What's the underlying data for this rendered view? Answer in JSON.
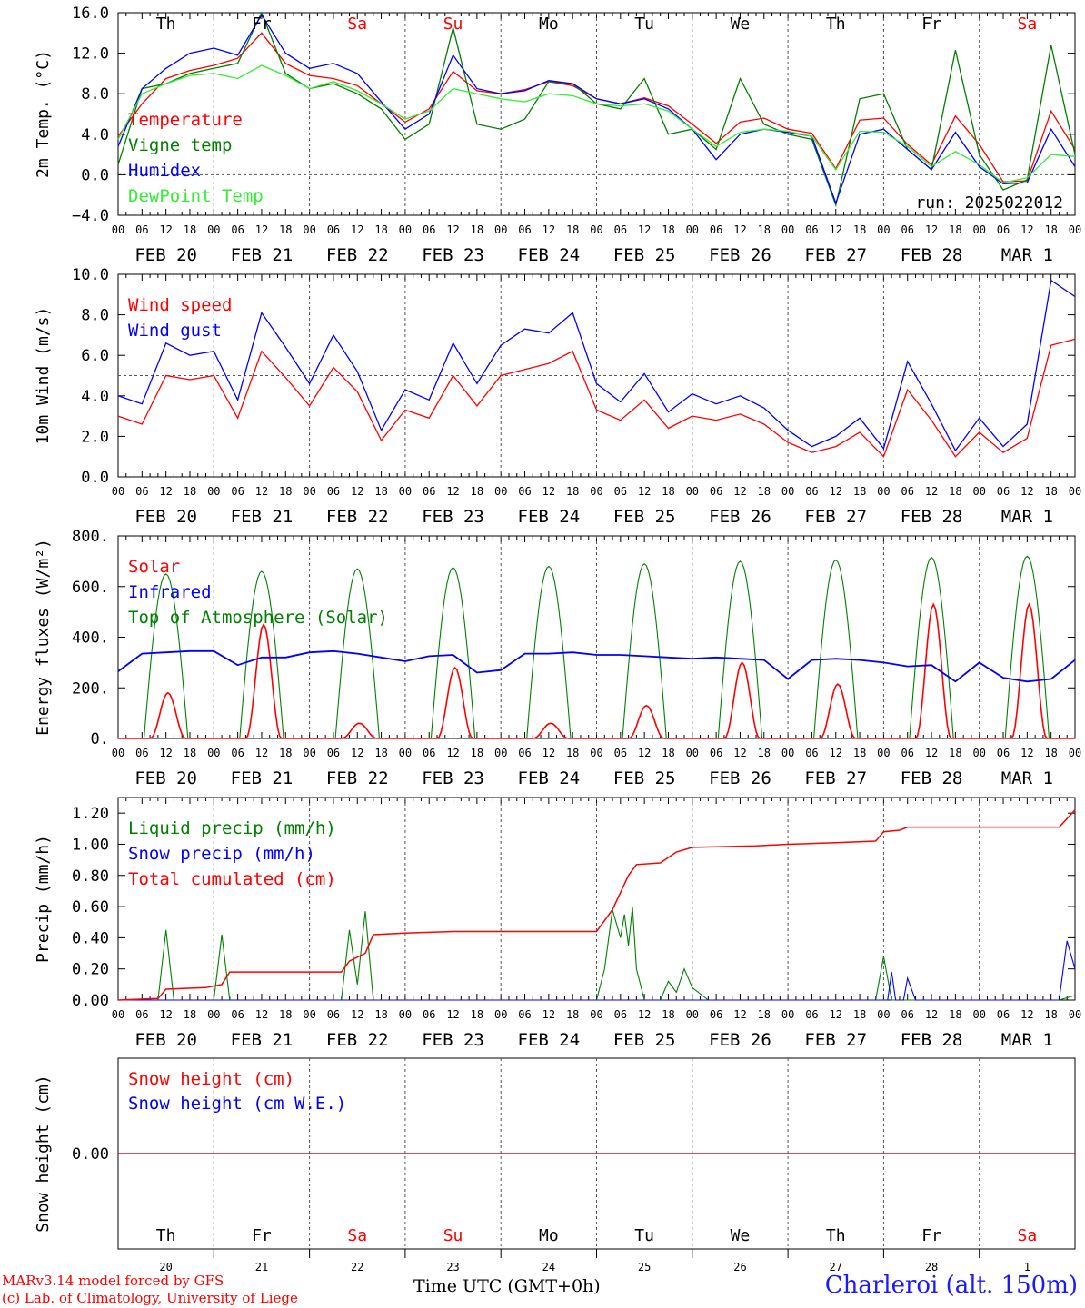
{
  "station_label": "Charleroi (alt. 150m)",
  "credits": [
    "MARv3.14 model forced by GFS",
    "(c) Lab. of Climatology, University of Liege"
  ],
  "time_axis_label": "Time UTC (GMT+0h)",
  "run_label": "run: 2025022012",
  "day_names": [
    "Th",
    "Fr",
    "Sa",
    "Su",
    "Mo",
    "Tu",
    "We",
    "Th",
    "Fr",
    "Sa"
  ],
  "weekend_flags": [
    false,
    false,
    true,
    true,
    false,
    false,
    false,
    false,
    false,
    true
  ],
  "date_labels": [
    "FEB 20",
    "FEB 21",
    "FEB 22",
    "FEB 23",
    "FEB 24",
    "FEB 25",
    "FEB 26",
    "FEB 27",
    "FEB 28",
    "MAR  1"
  ],
  "day_numbers": [
    "20",
    "21",
    "22",
    "23",
    "24",
    "25",
    "26",
    "27",
    "28",
    "1"
  ],
  "hour_labels": [
    "00",
    "06",
    "12",
    "18"
  ],
  "colors": {
    "red": "#ff0000",
    "green": "#008000",
    "blue": "#0000ff",
    "light_green": "#33ee33",
    "grid": "#555555"
  },
  "chart_data": [
    {
      "type": "line",
      "ylabel": "2m Temp. (°C)",
      "ylim": [
        -4,
        16
      ],
      "y_ticks": [
        "−4.0",
        "0.0",
        "4.0",
        "8.0",
        "12.0",
        "16.0"
      ],
      "y_tick_values": [
        -4,
        0,
        4,
        8,
        12,
        16
      ],
      "ref_line": 0,
      "x_hours": [
        0,
        6,
        12,
        18,
        24,
        30,
        36,
        42,
        48,
        54,
        60,
        66,
        72,
        78,
        84,
        90,
        96,
        102,
        108,
        114,
        120,
        126,
        132,
        138,
        144,
        150,
        156,
        162,
        168,
        174,
        180,
        186,
        192,
        198,
        204,
        210,
        216,
        222,
        228,
        234,
        240
      ],
      "series": [
        {
          "name": "Temperature",
          "color": "#ff0000",
          "values": [
            3.8,
            7.0,
            9.5,
            10.3,
            10.8,
            11.5,
            14.0,
            11.0,
            9.8,
            9.5,
            8.8,
            7.0,
            5.2,
            6.5,
            10.2,
            8.3,
            8.0,
            8.4,
            9.2,
            8.8,
            7.5,
            7.0,
            7.6,
            6.8,
            5.0,
            3.1,
            5.2,
            5.6,
            4.5,
            4.1,
            0.6,
            5.4,
            5.6,
            3.0,
            1.0,
            5.8,
            3.0,
            -0.7,
            -0.6,
            6.3,
            2.5
          ]
        },
        {
          "name": "Vigne temp",
          "color": "#008000",
          "values": [
            1.0,
            8.5,
            9.0,
            10.0,
            10.5,
            11.0,
            16.0,
            10.0,
            8.5,
            9.0,
            8.0,
            6.5,
            3.5,
            5.0,
            14.5,
            5.0,
            4.5,
            5.5,
            9.2,
            9.0,
            7.0,
            6.5,
            9.5,
            4.0,
            4.5,
            2.5,
            9.5,
            5.0,
            4.0,
            3.5,
            -3.0,
            7.5,
            8.0,
            2.5,
            0.5,
            12.3,
            2.0,
            -1.5,
            -0.5,
            12.8,
            2.0
          ]
        },
        {
          "name": "Humidex",
          "color": "#0000ff",
          "values": [
            2.8,
            8.5,
            10.5,
            12.0,
            12.5,
            11.8,
            15.8,
            12.0,
            10.5,
            11.0,
            10.0,
            7.2,
            4.5,
            6.0,
            11.8,
            8.5,
            8.0,
            8.3,
            9.3,
            9.0,
            7.5,
            7.0,
            7.5,
            6.5,
            4.5,
            1.5,
            4.0,
            4.5,
            4.2,
            3.8,
            -2.8,
            4.0,
            4.5,
            2.5,
            0.5,
            4.2,
            0.8,
            -0.9,
            -0.8,
            4.5,
            0.8
          ]
        },
        {
          "name": "DewPoint Temp",
          "color": "#33ee33",
          "values": [
            3.5,
            8.0,
            9.0,
            9.8,
            10.0,
            9.5,
            10.8,
            9.8,
            8.5,
            9.2,
            8.3,
            7.0,
            5.5,
            6.3,
            8.5,
            8.0,
            7.5,
            7.2,
            8.0,
            7.8,
            7.0,
            6.8,
            7.0,
            6.3,
            4.5,
            2.8,
            4.2,
            4.5,
            4.3,
            3.8,
            0.5,
            4.3,
            4.2,
            2.8,
            0.8,
            2.3,
            1.0,
            -0.8,
            -0.3,
            2.0,
            1.8
          ]
        }
      ]
    },
    {
      "type": "line",
      "ylabel": "10m Wind (m/s)",
      "ylim": [
        0,
        10
      ],
      "y_ticks": [
        "0.0",
        "2.0",
        "4.0",
        "6.0",
        "8.0",
        "10.0"
      ],
      "y_tick_values": [
        0,
        2,
        4,
        6,
        8,
        10
      ],
      "ref_line": 5,
      "x_hours": [
        0,
        6,
        12,
        18,
        24,
        30,
        36,
        42,
        48,
        54,
        60,
        66,
        72,
        78,
        84,
        90,
        96,
        102,
        108,
        114,
        120,
        126,
        132,
        138,
        144,
        150,
        156,
        162,
        168,
        174,
        180,
        186,
        192,
        198,
        204,
        210,
        216,
        222,
        228,
        234,
        240
      ],
      "series": [
        {
          "name": "Wind speed",
          "color": "#ff0000",
          "values": [
            3.0,
            2.6,
            5.0,
            4.8,
            5.0,
            2.9,
            6.2,
            4.9,
            3.5,
            5.4,
            4.2,
            1.8,
            3.3,
            2.9,
            5.0,
            3.5,
            5.0,
            5.3,
            5.6,
            6.2,
            3.3,
            2.8,
            3.8,
            2.4,
            3.0,
            2.8,
            3.1,
            2.6,
            1.7,
            1.2,
            1.5,
            2.2,
            1.0,
            4.3,
            2.8,
            1.0,
            2.2,
            1.2,
            1.9,
            6.5,
            6.8
          ]
        },
        {
          "name": "Wind gust",
          "color": "#0000ff",
          "values": [
            4.0,
            3.6,
            6.6,
            6.0,
            6.2,
            3.8,
            8.1,
            6.4,
            4.6,
            7.0,
            5.2,
            2.3,
            4.3,
            3.8,
            6.6,
            4.6,
            6.5,
            7.3,
            7.1,
            8.1,
            4.6,
            3.7,
            5.1,
            3.2,
            4.1,
            3.6,
            4.0,
            3.4,
            2.3,
            1.5,
            2.0,
            2.9,
            1.4,
            5.7,
            3.6,
            1.3,
            2.9,
            1.5,
            2.6,
            9.7,
            8.9
          ]
        }
      ]
    },
    {
      "type": "line",
      "ylabel": "Energy fluxes (W/m²)",
      "ylim": [
        0,
        800
      ],
      "y_ticks": [
        "0.",
        "200.",
        "400.",
        "600.",
        "800."
      ],
      "y_tick_values": [
        0,
        200,
        400,
        600,
        800
      ],
      "series": [
        {
          "name": "Solar",
          "color": "#ff0000",
          "day_peaks": [
            180,
            450,
            60,
            280,
            60,
            130,
            300,
            215,
            530,
            530
          ]
        },
        {
          "name": "Infrared",
          "color": "#0000ff",
          "x_hours": [
            0,
            6,
            12,
            18,
            24,
            30,
            36,
            42,
            48,
            54,
            60,
            66,
            72,
            78,
            84,
            90,
            96,
            102,
            108,
            114,
            120,
            126,
            132,
            138,
            144,
            150,
            156,
            162,
            168,
            174,
            180,
            186,
            192,
            198,
            204,
            210,
            216,
            222,
            228,
            234,
            240
          ],
          "values": [
            265,
            335,
            340,
            345,
            345,
            290,
            320,
            320,
            340,
            345,
            335,
            320,
            305,
            325,
            330,
            260,
            270,
            335,
            335,
            340,
            330,
            330,
            325,
            320,
            315,
            320,
            315,
            310,
            235,
            310,
            315,
            310,
            300,
            285,
            290,
            225,
            300,
            240,
            225,
            235,
            310
          ]
        },
        {
          "name": "Top of Atmosphere (Solar)",
          "color": "#008000",
          "day_peaks": [
            650,
            660,
            670,
            675,
            680,
            690,
            700,
            705,
            715,
            720
          ]
        }
      ]
    },
    {
      "type": "line",
      "ylabel": "Precip (mm/h)",
      "ylim": [
        0,
        1.3
      ],
      "y_ticks": [
        "0.00",
        "0.20",
        "0.40",
        "0.60",
        "0.80",
        "1.00",
        "1.20"
      ],
      "y_tick_values": [
        0,
        0.2,
        0.4,
        0.6,
        0.8,
        1.0,
        1.2
      ],
      "series": [
        {
          "name": "Liquid precip (mm/h)",
          "color": "#008000",
          "points": [
            [
              0,
              0
            ],
            [
              10,
              0
            ],
            [
              12,
              0.45
            ],
            [
              14,
              0
            ],
            [
              24,
              0
            ],
            [
              26,
              0.42
            ],
            [
              28,
              0
            ],
            [
              56,
              0
            ],
            [
              58,
              0.45
            ],
            [
              60,
              0.1
            ],
            [
              62,
              0.57
            ],
            [
              64,
              0
            ],
            [
              120,
              0
            ],
            [
              122,
              0.2
            ],
            [
              124,
              0.58
            ],
            [
              126,
              0.4
            ],
            [
              127,
              0.55
            ],
            [
              128,
              0.35
            ],
            [
              129,
              0.6
            ],
            [
              130,
              0.2
            ],
            [
              132,
              0
            ],
            [
              136,
              0
            ],
            [
              138,
              0.12
            ],
            [
              140,
              0.05
            ],
            [
              142,
              0.2
            ],
            [
              144,
              0.08
            ],
            [
              148,
              0
            ],
            [
              190,
              0
            ],
            [
              192,
              0.28
            ],
            [
              194,
              0
            ],
            [
              236,
              0
            ],
            [
              240,
              0.03
            ]
          ]
        },
        {
          "name": "Snow precip (mm/h)",
          "color": "#0000ff",
          "points": [
            [
              0,
              0
            ],
            [
              193,
              0
            ],
            [
              194,
              0.18
            ],
            [
              195,
              0
            ],
            [
              197,
              0
            ],
            [
              198,
              0.14
            ],
            [
              200,
              0
            ],
            [
              236,
              0
            ],
            [
              238,
              0.38
            ],
            [
              240,
              0.2
            ]
          ]
        },
        {
          "name": "Total cumulated (cm)",
          "color": "#ff0000",
          "points": [
            [
              0,
              0
            ],
            [
              10,
              0.01
            ],
            [
              12,
              0.07
            ],
            [
              22,
              0.08
            ],
            [
              26,
              0.1
            ],
            [
              28,
              0.18
            ],
            [
              56,
              0.18
            ],
            [
              58,
              0.25
            ],
            [
              62,
              0.3
            ],
            [
              64,
              0.42
            ],
            [
              72,
              0.43
            ],
            [
              84,
              0.44
            ],
            [
              120,
              0.44
            ],
            [
              124,
              0.58
            ],
            [
              128,
              0.8
            ],
            [
              130,
              0.87
            ],
            [
              136,
              0.88
            ],
            [
              140,
              0.95
            ],
            [
              144,
              0.98
            ],
            [
              160,
              0.99
            ],
            [
              168,
              1.0
            ],
            [
              180,
              1.01
            ],
            [
              190,
              1.02
            ],
            [
              192,
              1.08
            ],
            [
              196,
              1.09
            ],
            [
              198,
              1.11
            ],
            [
              236,
              1.11
            ],
            [
              240,
              1.22
            ]
          ]
        }
      ]
    },
    {
      "type": "line",
      "ylabel": "Snow height (cm)",
      "y_ticks": [
        "0.00"
      ],
      "y_tick_values": [
        0
      ],
      "series": [
        {
          "name": "Snow height (cm)",
          "color": "#ff0000",
          "values": [
            0,
            0
          ]
        },
        {
          "name": "Snow height (cm W.E.)",
          "color": "#0000ff",
          "values": [
            0,
            0
          ]
        }
      ]
    }
  ]
}
